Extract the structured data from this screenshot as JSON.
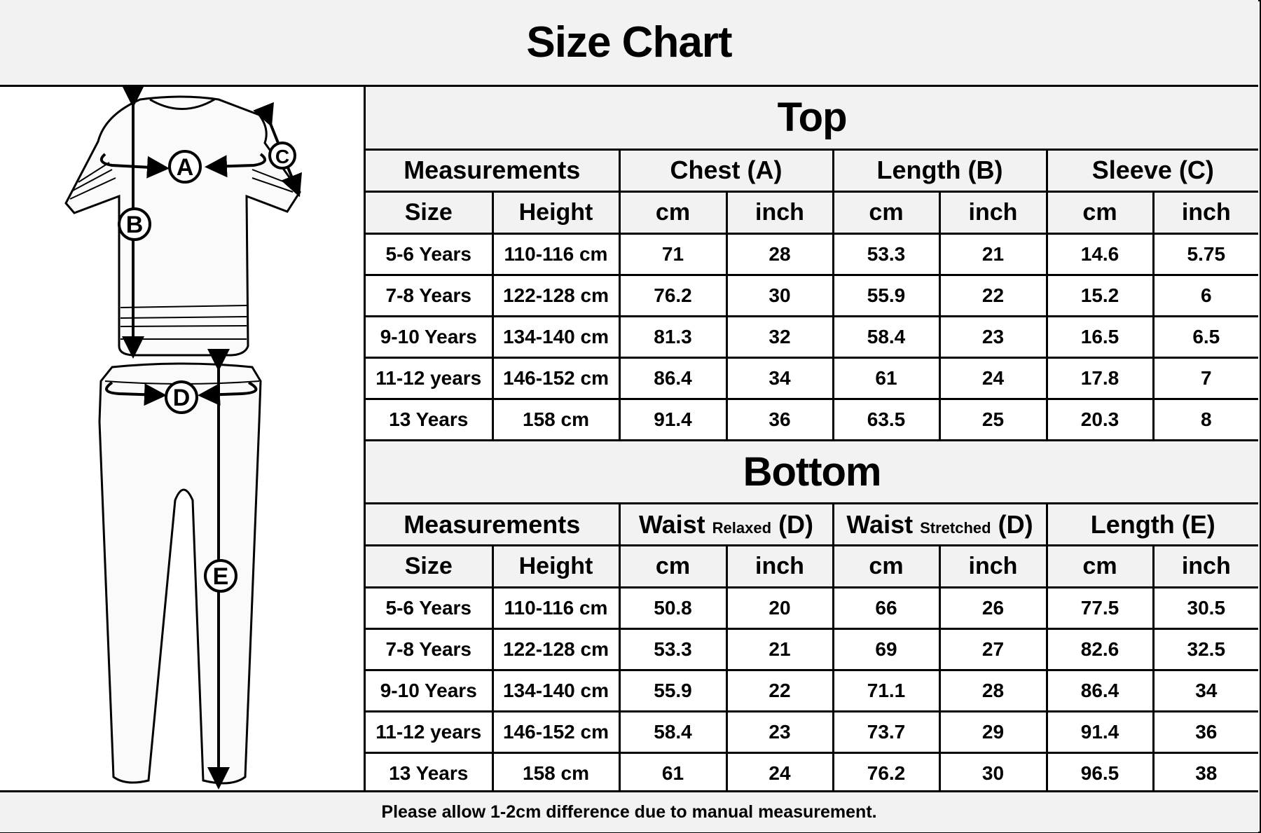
{
  "title": "Size Chart",
  "diagram_labels": {
    "a": "A",
    "b": "B",
    "c": "C",
    "d": "D",
    "e": "E"
  },
  "top": {
    "section_title": "Top",
    "groups": [
      "Measurements",
      "Chest (A)",
      "Length (B)",
      "Sleeve (C)"
    ],
    "subheaders": [
      "Size",
      "Height",
      "cm",
      "inch",
      "cm",
      "inch",
      "cm",
      "inch"
    ],
    "rows": [
      [
        "5-6 Years",
        "110-116 cm",
        "71",
        "28",
        "53.3",
        "21",
        "14.6",
        "5.75"
      ],
      [
        "7-8 Years",
        "122-128 cm",
        "76.2",
        "30",
        "55.9",
        "22",
        "15.2",
        "6"
      ],
      [
        "9-10 Years",
        "134-140 cm",
        "81.3",
        "32",
        "58.4",
        "23",
        "16.5",
        "6.5"
      ],
      [
        "11-12 years",
        "146-152 cm",
        "86.4",
        "34",
        "61",
        "24",
        "17.8",
        "7"
      ],
      [
        "13 Years",
        "158 cm",
        "91.4",
        "36",
        "63.5",
        "25",
        "20.3",
        "8"
      ]
    ]
  },
  "bottom": {
    "section_title": "Bottom",
    "groups": [
      {
        "main": "Measurements",
        "small": "",
        "suffix": ""
      },
      {
        "main": "Waist",
        "small": "Relaxed",
        "suffix": "(D)"
      },
      {
        "main": "Waist",
        "small": "Stretched",
        "suffix": "(D)"
      },
      {
        "main": "Length (E)",
        "small": "",
        "suffix": ""
      }
    ],
    "subheaders": [
      "Size",
      "Height",
      "cm",
      "inch",
      "cm",
      "inch",
      "cm",
      "inch"
    ],
    "rows": [
      [
        "5-6 Years",
        "110-116 cm",
        "50.8",
        "20",
        "66",
        "26",
        "77.5",
        "30.5"
      ],
      [
        "7-8 Years",
        "122-128 cm",
        "53.3",
        "21",
        "69",
        "27",
        "82.6",
        "32.5"
      ],
      [
        "9-10 Years",
        "134-140 cm",
        "55.9",
        "22",
        "71.1",
        "28",
        "86.4",
        "34"
      ],
      [
        "11-12 years",
        "146-152 cm",
        "58.4",
        "23",
        "73.7",
        "29",
        "91.4",
        "36"
      ],
      [
        "13 Years",
        "158 cm",
        "61",
        "24",
        "76.2",
        "30",
        "96.5",
        "38"
      ]
    ]
  },
  "footer": "Please allow 1-2cm difference due to manual measurement."
}
